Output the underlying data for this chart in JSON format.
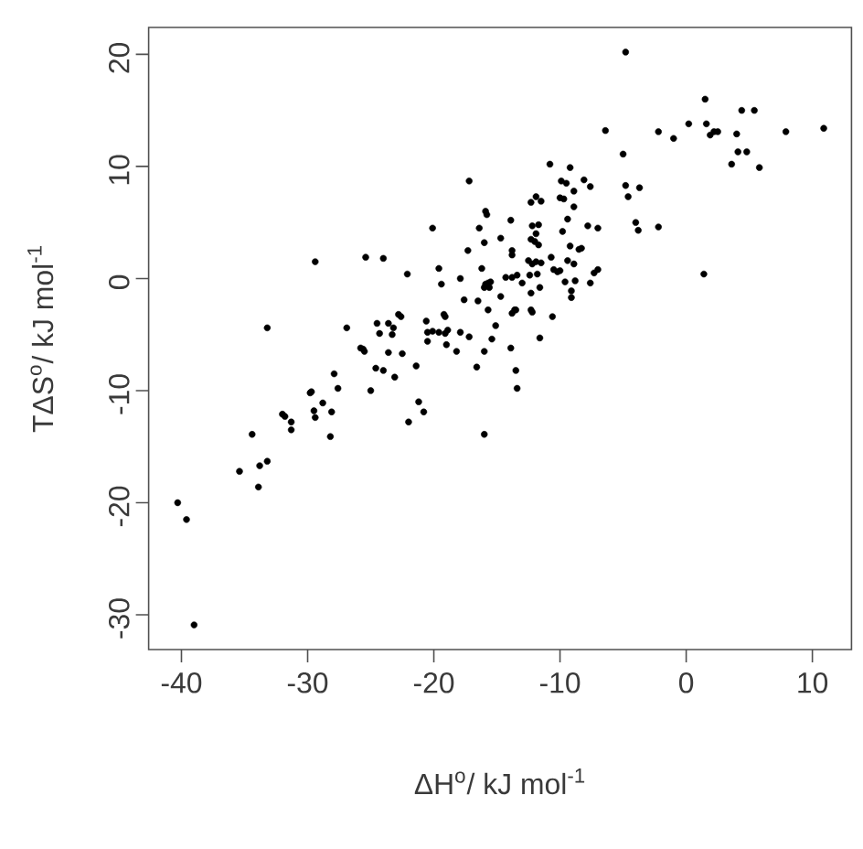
{
  "chart_data": {
    "type": "scatter",
    "xlabel": "ΔH$^{o}$/ kJ mol$^{-1}$",
    "ylabel": "TΔS$^{o}$/ kJ mol$^{-1}$",
    "x": [
      -4.8,
      1.5,
      4.4,
      5.4,
      0.2,
      1.6,
      1.9,
      2.2,
      2.5,
      4.0,
      7.9,
      10.9,
      -2.2,
      -1.0,
      -6.4,
      -5.0,
      4.1,
      4.8,
      3.6,
      5.8,
      -4.8,
      -3.7,
      -4.6,
      -4.0,
      -3.8,
      -2.2,
      1.4,
      -17.2,
      -10.8,
      -9.2,
      -9.9,
      -9.5,
      -8.9,
      -10.0,
      -9.7,
      -8.1,
      -7.6,
      -8.9,
      -9.4,
      -7.8,
      -7.0,
      -9.8,
      -9.2,
      -8.5,
      -8.3,
      -9.4,
      -8.9,
      -10.7,
      -10.5,
      -10.2,
      -10.0,
      -9.6,
      -8.8,
      -9.1,
      -9.1,
      -7.6,
      -7.3,
      -7.0,
      -10.6,
      -11.7,
      -12.3,
      -11.9,
      -11.5,
      -12.2,
      -11.9,
      -12.3,
      -12.0,
      -11.7,
      -12.5,
      -12.2,
      -11.9,
      -11.5,
      -12.4,
      -11.8,
      -12.3,
      -11.6,
      -12.3,
      -12.2,
      -11.6,
      -13.8,
      -13.8,
      -13.9,
      -14.3,
      -13.8,
      -13.4,
      -13.0,
      -14.7,
      -13.6,
      -13.8,
      -13.5,
      -13.9,
      -13.5,
      -13.4,
      -15.9,
      -15.8,
      -16.4,
      -16.0,
      -17.3,
      -14.7,
      -16.2,
      -17.9,
      -15.9,
      -15.7,
      -15.5,
      -16.0,
      -15.6,
      -17.6,
      -16.5,
      -15.7,
      -15.1,
      -17.2,
      -17.9,
      -15.4,
      -16.0,
      -16.6,
      -16.0,
      -20.1,
      -19.6,
      -19.4,
      -22.1,
      -20.6,
      -20.5,
      -20.1,
      -19.6,
      -19.2,
      -19.1,
      -18.9,
      -19.1,
      -18.2,
      -19.0,
      -20.5,
      -22.6,
      -22.8,
      -22.5,
      -21.4,
      -23.1,
      -21.2,
      -20.8,
      -22.0,
      -23.6,
      -23.3,
      -23.2,
      -25.4,
      -24.0,
      -29.4,
      -24.5,
      -24.3,
      -25.8,
      -25.6,
      -25.5,
      -23.6,
      -24.6,
      -24.0,
      -26.9,
      -25.0,
      -27.9,
      -27.6,
      -28.2,
      -28.1,
      -28.8,
      -29.8,
      -29.7,
      -29.5,
      -29.4,
      -32.0,
      -31.8,
      -31.3,
      -31.3,
      -33.2,
      -34.4,
      -35.4,
      -33.8,
      -33.2,
      -33.9,
      -40.3,
      -39.6,
      -39.0
    ],
    "values": [
      20.2,
      16.0,
      15.0,
      15.0,
      13.8,
      13.8,
      12.8,
      13.1,
      13.1,
      12.9,
      13.1,
      13.4,
      13.1,
      12.5,
      13.2,
      11.1,
      11.3,
      11.3,
      10.2,
      9.9,
      8.3,
      8.1,
      7.3,
      5.0,
      4.3,
      4.6,
      0.4,
      8.7,
      10.2,
      9.9,
      8.7,
      8.5,
      7.8,
      7.2,
      7.1,
      8.8,
      8.2,
      6.4,
      5.3,
      4.7,
      4.5,
      4.2,
      2.9,
      2.6,
      2.7,
      1.6,
      1.3,
      1.9,
      0.8,
      0.6,
      0.7,
      -0.3,
      -0.2,
      -1.1,
      -1.7,
      -0.4,
      0.5,
      0.8,
      -3.4,
      4.8,
      6.8,
      7.3,
      6.9,
      4.7,
      4.0,
      3.5,
      3.3,
      3.0,
      1.6,
      1.3,
      1.5,
      1.4,
      0.3,
      0.4,
      -1.3,
      -0.8,
      -2.8,
      -3.0,
      -5.3,
      2.5,
      2.1,
      5.2,
      0.1,
      0.1,
      0.3,
      -0.4,
      -1.6,
      -2.8,
      -3.1,
      -2.8,
      -6.2,
      -8.2,
      -9.8,
      6.0,
      5.7,
      4.5,
      3.2,
      2.5,
      3.6,
      0.9,
      0.0,
      -0.5,
      -0.4,
      -0.3,
      -0.8,
      -0.8,
      -1.9,
      -2.0,
      -2.8,
      -4.2,
      -5.2,
      -4.8,
      -5.4,
      -6.5,
      -7.9,
      -13.9,
      4.5,
      0.9,
      -0.5,
      0.4,
      -3.8,
      -4.8,
      -4.7,
      -4.8,
      -3.2,
      -3.4,
      -4.6,
      -4.9,
      -6.5,
      -5.9,
      -5.6,
      -3.4,
      -3.2,
      -6.7,
      -7.8,
      -8.8,
      -11.0,
      -11.9,
      -12.8,
      -4.0,
      -5.0,
      -4.4,
      1.9,
      1.8,
      1.5,
      -4.0,
      -4.9,
      -6.2,
      -6.3,
      -6.5,
      -6.6,
      -8.0,
      -8.2,
      -4.4,
      -10.0,
      -8.5,
      -9.8,
      -14.1,
      -11.9,
      -11.1,
      -10.2,
      -10.1,
      -11.8,
      -12.4,
      -12.1,
      -12.3,
      -12.8,
      -13.5,
      -4.4,
      -13.9,
      -17.2,
      -16.7,
      -16.3,
      -18.6,
      -20.0,
      -21.5,
      -30.9
    ],
    "color": "#000000",
    "marker": "circle",
    "xlim": [
      -42.6,
      13.1
    ],
    "ylim": [
      -33.1,
      22.4
    ],
    "xticks": [
      -40,
      -30,
      -20,
      -10,
      0,
      10
    ],
    "yticks": [
      -30,
      -20,
      -10,
      0,
      10,
      20
    ]
  }
}
